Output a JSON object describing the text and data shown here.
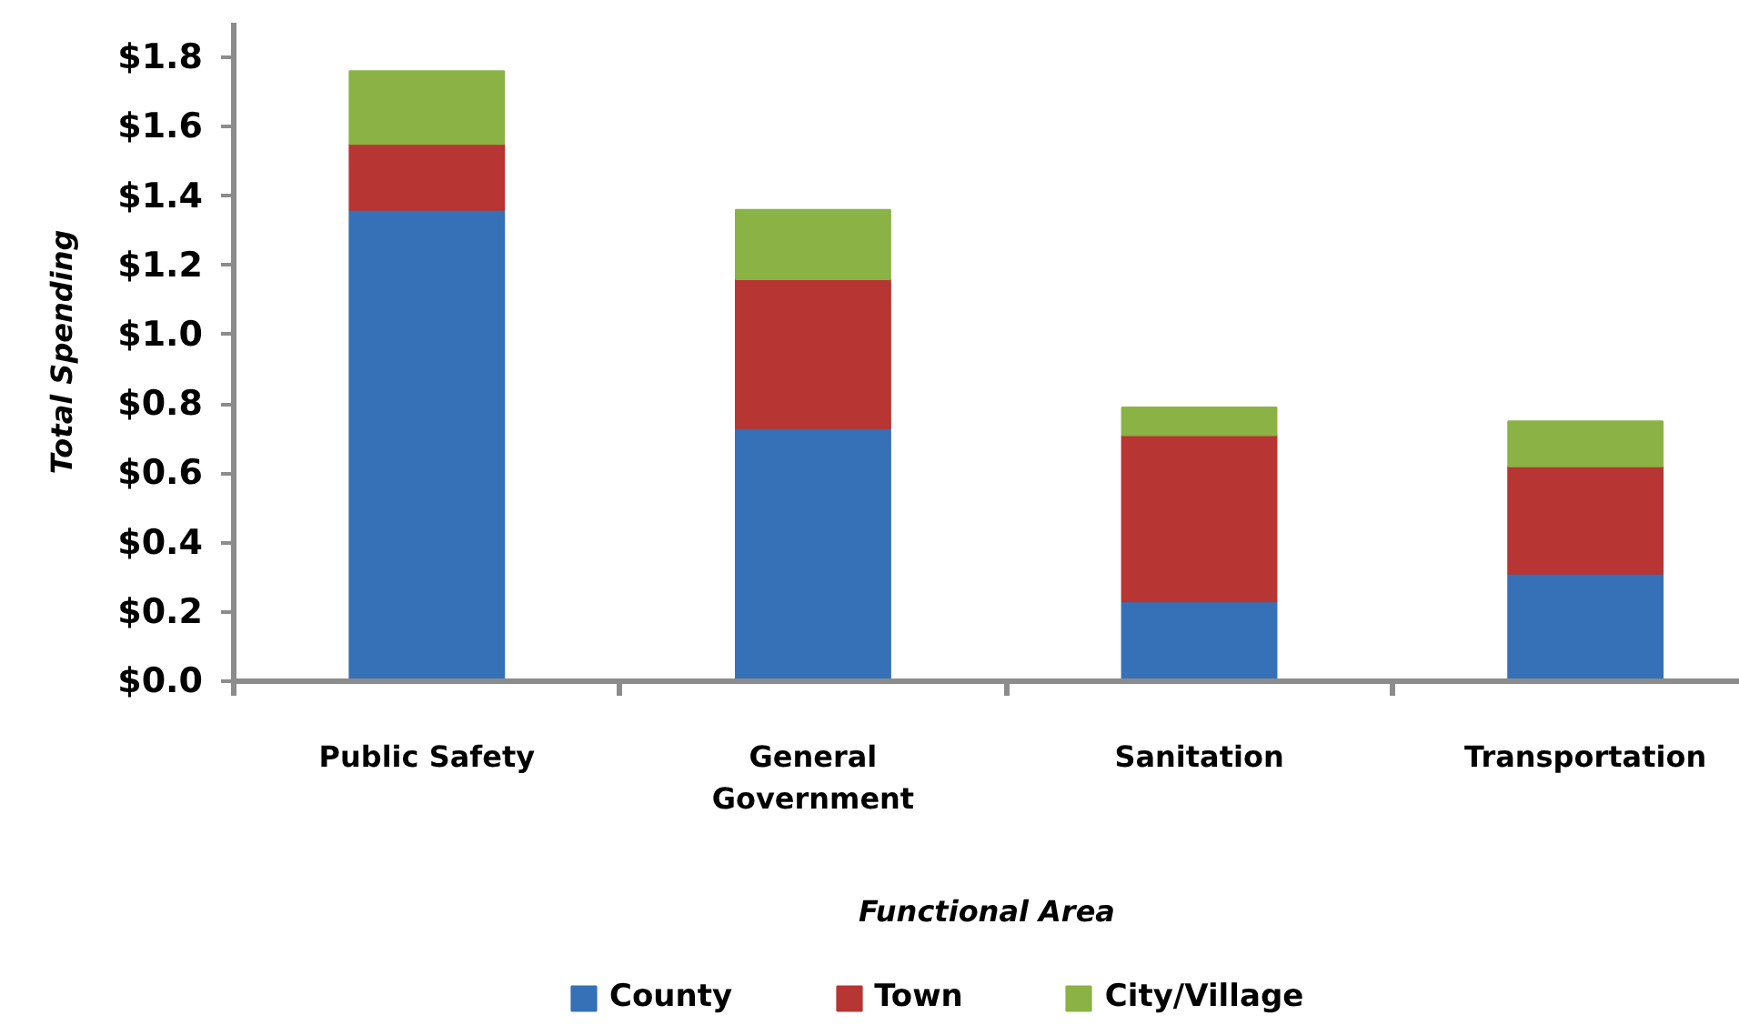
{
  "chart_data": {
    "type": "bar",
    "stacked": true,
    "xlabel": "Functional Area",
    "ylabel": "Total Spending",
    "categories": [
      "Public Safety",
      "General Government",
      "Sanitation",
      "Transportation"
    ],
    "series": [
      {
        "name": "County",
        "color": "#3670b6",
        "values": [
          1.36,
          0.73,
          0.23,
          0.31
        ]
      },
      {
        "name": "Town",
        "color": "#b73532",
        "values": [
          0.19,
          0.43,
          0.48,
          0.31
        ]
      },
      {
        "name": "City/Village",
        "color": "#8bb244",
        "values": [
          0.21,
          0.2,
          0.08,
          0.13
        ]
      }
    ],
    "ylim": [
      0,
      1.9
    ],
    "yticks": [
      {
        "value": 0,
        "label": "$0.0"
      },
      {
        "value": 0.2,
        "label": "$0.2"
      },
      {
        "value": 0.4,
        "label": "$0.4"
      },
      {
        "value": 0.6,
        "label": "$0.6"
      },
      {
        "value": 0.8,
        "label": "$0.8"
      },
      {
        "value": 1,
        "label": "$1.0"
      },
      {
        "value": 1.2,
        "label": "$1.2"
      },
      {
        "value": 1.4,
        "label": "$1.4"
      },
      {
        "value": 1.6,
        "label": "$1.6"
      },
      {
        "value": 1.8,
        "label": "$1.8"
      }
    ],
    "legend": "bottom"
  }
}
